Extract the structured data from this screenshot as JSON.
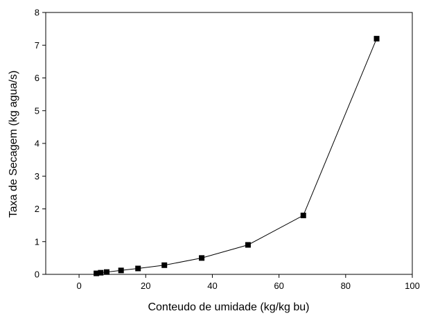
{
  "chart_data": {
    "type": "line",
    "title": "",
    "xlabel": "Conteudo de umidade (kg/kg bu)",
    "ylabel": "Taxa de Secagem (kg agua/s)",
    "xlim": [
      -10,
      100
    ],
    "ylim": [
      0,
      8
    ],
    "x_ticks": [
      0,
      20,
      40,
      60,
      80,
      100
    ],
    "y_ticks": [
      0,
      1,
      2,
      3,
      4,
      5,
      6,
      7,
      8
    ],
    "x_tick_labels": [
      "0",
      "20",
      "40",
      "60",
      "80",
      "100"
    ],
    "y_tick_labels": [
      "0",
      "1",
      "2",
      "3",
      "4",
      "5",
      "6",
      "7",
      "8"
    ],
    "grid": false,
    "marker": "square",
    "series": [
      {
        "x": [
          5.2,
          6.5,
          8.3,
          12.6,
          17.7,
          25.6,
          36.8,
          50.7,
          67.3,
          89.3
        ],
        "y": [
          0.03,
          0.05,
          0.07,
          0.12,
          0.18,
          0.28,
          0.5,
          0.9,
          1.8,
          7.2
        ]
      }
    ]
  }
}
